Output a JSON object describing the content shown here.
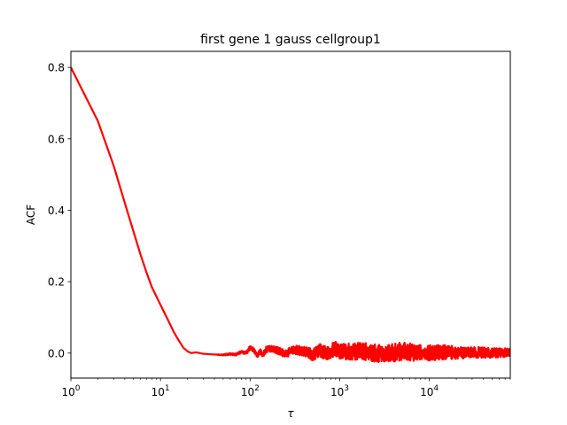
{
  "chart_data": {
    "type": "line",
    "title": "first gene 1 gauss cellgroup1",
    "xlabel": "τ",
    "ylabel": "ACF",
    "xscale": "log",
    "xlim": [
      1,
      80000
    ],
    "ylim": [
      -0.07,
      0.845
    ],
    "grid": false,
    "legend": "none",
    "xticks": [
      {
        "value": 1,
        "base": "10",
        "exp": "0"
      },
      {
        "value": 10,
        "base": "10",
        "exp": "1"
      },
      {
        "value": 100,
        "base": "10",
        "exp": "2"
      },
      {
        "value": 1000,
        "base": "10",
        "exp": "3"
      },
      {
        "value": 10000,
        "base": "10",
        "exp": "4"
      }
    ],
    "yticks": [
      {
        "value": 0.0,
        "label": "0.0"
      },
      {
        "value": 0.2,
        "label": "0.2"
      },
      {
        "value": 0.4,
        "label": "0.4"
      },
      {
        "value": 0.6,
        "label": "0.6"
      },
      {
        "value": 0.8,
        "label": "0.8"
      }
    ],
    "series": [
      {
        "color": "#ff0000",
        "x": [
          1,
          2,
          3,
          4,
          5,
          6,
          7,
          8,
          10,
          12,
          14,
          16,
          18,
          20,
          22,
          25,
          30,
          40,
          50,
          60,
          70,
          80,
          90,
          100,
          110,
          120,
          130,
          140,
          150,
          170,
          200,
          250,
          300,
          400,
          500,
          600,
          700,
          800,
          900,
          1000,
          1500,
          2000,
          3000,
          5000,
          7000,
          10000,
          15000,
          20000,
          30000,
          50000,
          80000
        ],
        "values": [
          0.8,
          0.65,
          0.525,
          0.42,
          0.34,
          0.275,
          0.225,
          0.185,
          0.135,
          0.095,
          0.06,
          0.035,
          0.015,
          0.005,
          0.0,
          0.002,
          -0.002,
          -0.004,
          -0.005,
          -0.003,
          -0.004,
          0.004,
          0.0,
          0.015,
          0.008,
          -0.008,
          0.005,
          -0.006,
          0.01,
          0.012,
          0.008,
          -0.003,
          0.01,
          0.005,
          -0.005,
          0.008,
          0.0,
          0.006,
          0.012,
          0.004,
          0.005,
          0.003,
          -0.002,
          0.004,
          0.002,
          0.0,
          0.003,
          0.001,
          0.002,
          0.0,
          0.002
        ],
        "noise_amplitude": [
          0,
          0,
          0,
          0,
          0,
          0,
          0,
          0,
          0,
          0,
          0,
          0,
          0,
          0,
          0,
          0,
          0,
          0,
          0.002,
          0.003,
          0.003,
          0.004,
          0.005,
          0.006,
          0.006,
          0.007,
          0.007,
          0.008,
          0.008,
          0.009,
          0.01,
          0.011,
          0.012,
          0.014,
          0.016,
          0.018,
          0.019,
          0.02,
          0.021,
          0.022,
          0.024,
          0.025,
          0.025,
          0.026,
          0.024,
          0.022,
          0.02,
          0.018,
          0.016,
          0.014,
          0.012
        ]
      }
    ]
  }
}
